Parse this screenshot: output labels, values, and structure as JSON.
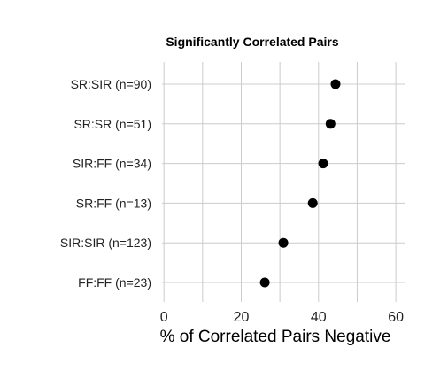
{
  "chart_data": {
    "type": "scatter",
    "title": "Significantly Correlated Pairs",
    "xlabel": "% of Correlated Pairs Negative",
    "ylabel": "",
    "xlim": [
      -0.5,
      62.5
    ],
    "xticks": [
      0,
      20,
      40,
      60
    ],
    "grid": true,
    "categories": [
      "SR:SIR (n=90)",
      "SR:SR (n=51)",
      "SIR:FF (n=34)",
      "SR:FF (n=13)",
      "SIR:SIR (n=123)",
      "FF:FF (n=23)"
    ],
    "values": [
      44.4,
      43.1,
      41.2,
      38.5,
      30.9,
      26.1
    ],
    "colors": {
      "point": "#000000",
      "grid": "#cccccc"
    }
  }
}
